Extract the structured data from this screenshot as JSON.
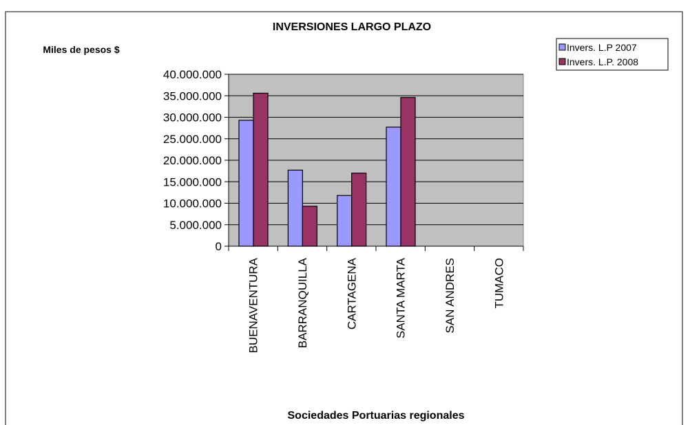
{
  "chart_data": {
    "type": "bar",
    "title": "INVERSIONES LARGO PLAZO",
    "y_label": "Miles de pesos $",
    "x_label": "Sociedades Portuarias regionales",
    "categories": [
      "BUENAVENTURA",
      "BARRANQUILLA",
      "CARTAGENA",
      "SANTA MARTA",
      "SAN ANDRES",
      "TUMACO"
    ],
    "series": [
      {
        "name": "Invers. L.P 2007",
        "color": "#9999ff",
        "values": [
          29300000,
          17700000,
          11800000,
          27700000,
          0,
          0
        ]
      },
      {
        "name": "Invers. L.P. 2008",
        "color": "#993366",
        "values": [
          35600000,
          9300000,
          17000000,
          34600000,
          0,
          0
        ]
      }
    ],
    "ylim": [
      0,
      40000000
    ],
    "yticks": [
      0,
      {
        "value": 5000000,
        "label": "5.000.000"
      },
      {
        "value": 10000000,
        "label": "10.000.000"
      },
      {
        "value": 15000000,
        "label": "15.000.000"
      },
      {
        "value": 20000000,
        "label": "20.000.000"
      },
      {
        "value": 25000000,
        "label": "25.000.000"
      },
      {
        "value": 30000000,
        "label": "30.000.000"
      },
      {
        "value": 35000000,
        "label": "35.000.000"
      },
      {
        "value": 40000000,
        "label": "40.000.000"
      }
    ],
    "grid": true,
    "legend": "top-right",
    "plot_background": "#c0c0c0"
  }
}
